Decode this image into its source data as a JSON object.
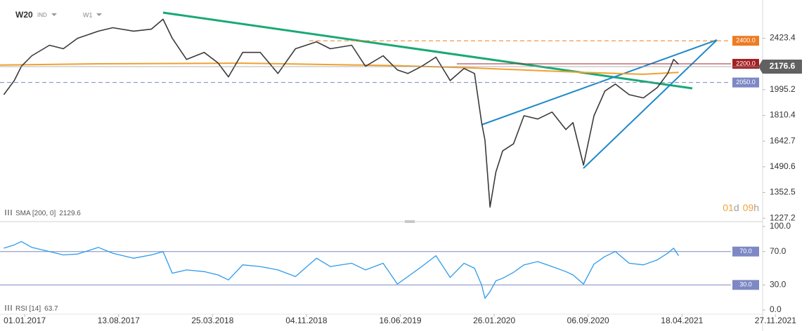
{
  "chart_data": [
    {
      "type": "line",
      "instrument_type": "IND",
      "interval": "W1",
      "log_scale": true,
      "xlim": [
        "2016-11-03",
        "2022-02-15"
      ],
      "ylim": [
        1215,
        2800
      ],
      "yticks": [
        2423.4,
        1995.2,
        1810.4,
        1642.7,
        1490.6,
        1352.5,
        1227.2
      ],
      "last_price": 2176.6,
      "levels": [
        {
          "value": 2400,
          "label": "2400.0",
          "color": "#ee7b22",
          "style": "dashed"
        },
        {
          "value": 2200,
          "label": "2200.0",
          "color": "#a31f24",
          "style": "solid"
        },
        {
          "value": 2050,
          "label": "2050.0",
          "color": "#7d88c4",
          "style": "dashed"
        }
      ],
      "timer": [
        {
          "text": "01",
          "color": "#f2a33a"
        },
        {
          "text": "d",
          "color": "#a0a0a0"
        },
        {
          "text": "09",
          "color": "#f2a33a"
        },
        {
          "text": "h",
          "color": "#a0a0a0"
        }
      ],
      "series": [
        {
          "name": "W20",
          "color": "#3a3a3a",
          "x": [
            "2016-11-12",
            "2016-12-07",
            "2016-12-24",
            "2017-01-18",
            "2017-03-01",
            "2017-04-03",
            "2017-05-07",
            "2017-06-26",
            "2017-07-30",
            "2017-09-18",
            "2017-10-30",
            "2017-11-27",
            "2017-12-19",
            "2018-01-22",
            "2018-03-05",
            "2018-04-07",
            "2018-05-02",
            "2018-06-05",
            "2018-07-17",
            "2018-08-28",
            "2018-10-09",
            "2018-11-28",
            "2018-12-31",
            "2019-02-20",
            "2019-03-25",
            "2019-05-06",
            "2019-06-09",
            "2019-07-04",
            "2019-08-06",
            "2019-09-09",
            "2019-10-13",
            "2019-11-15",
            "2019-12-10",
            "2019-12-27",
            "2020-01-04",
            "2020-01-16",
            "2020-01-30",
            "2020-02-15",
            "2020-03-12",
            "2020-04-06",
            "2020-05-09",
            "2020-06-12",
            "2020-07-15",
            "2020-08-01",
            "2020-08-26",
            "2020-09-20",
            "2020-10-16",
            "2020-11-10",
            "2020-12-13",
            "2021-01-16",
            "2021-02-18",
            "2021-03-15",
            "2021-03-29",
            "2021-04-10"
          ],
          "values": [
            1958,
            2065,
            2179,
            2268,
            2360,
            2329,
            2423,
            2489,
            2522,
            2489,
            2508,
            2604,
            2423,
            2237,
            2297,
            2208,
            2094,
            2297,
            2297,
            2121,
            2329,
            2391,
            2329,
            2360,
            2179,
            2268,
            2150,
            2121,
            2179,
            2256,
            2065,
            2162,
            2121,
            1762,
            1648,
            1280,
            1461,
            1583,
            1626,
            1808,
            1786,
            1833,
            1716,
            1762,
            1500,
            1808,
            1985,
            2038,
            1958,
            1934,
            2011,
            2121,
            2237,
            2196
          ]
        },
        {
          "name": "SMA [200, 0]",
          "color": "#f0a030",
          "legend_value": 2129.6,
          "x": [
            "2016-11-03",
            "2017-06-26",
            "2018-06-05",
            "2019-06-09",
            "2019-12-10",
            "2020-08-26",
            "2021-01-16",
            "2021-04-10"
          ],
          "values": [
            2190,
            2200,
            2205,
            2185,
            2165,
            2130,
            2115,
            2129.6
          ]
        }
      ]
    },
    {
      "type": "line",
      "name": "RSI [14]",
      "legend_value": 63.7,
      "color": "#2e9bea",
      "xlim": [
        "2016-11-03",
        "2022-02-15"
      ],
      "ylim": [
        0,
        100
      ],
      "yticks": [
        {
          "value": 100,
          "label": "100.0"
        },
        {
          "value": 70,
          "label": "70.0"
        },
        {
          "value": 30,
          "label": "30.0"
        },
        {
          "value": 0,
          "label": "0.0"
        }
      ],
      "levels": [
        {
          "value": 70,
          "label": "70.0",
          "color": "#7d88c4"
        },
        {
          "value": 30,
          "label": "30.0",
          "color": "#7d88c4"
        }
      ],
      "xticks": [
        {
          "value": "2017-01-01",
          "label": "01.01.2017"
        },
        {
          "value": "2017-08-13",
          "label": "13.08.2017"
        },
        {
          "value": "2018-03-25",
          "label": "25.03.2018"
        },
        {
          "value": "2018-11-04",
          "label": "04.11.2018"
        },
        {
          "value": "2019-06-16",
          "label": "16.06.2019"
        },
        {
          "value": "2020-01-26",
          "label": "26.01.2020"
        },
        {
          "value": "2020-09-06",
          "label": "06.09.2020"
        },
        {
          "value": "2021-04-18",
          "label": "18.04.2021"
        },
        {
          "value": "2021-11-27",
          "label": "27.11.2021"
        }
      ],
      "x": [
        "2016-11-12",
        "2016-12-07",
        "2016-12-24",
        "2017-01-18",
        "2017-03-01",
        "2017-04-03",
        "2017-05-07",
        "2017-06-26",
        "2017-07-30",
        "2017-09-18",
        "2017-10-30",
        "2017-11-27",
        "2017-12-19",
        "2018-01-22",
        "2018-03-05",
        "2018-04-07",
        "2018-05-02",
        "2018-06-05",
        "2018-07-17",
        "2018-08-28",
        "2018-10-09",
        "2018-11-28",
        "2018-12-31",
        "2019-02-20",
        "2019-03-25",
        "2019-05-06",
        "2019-06-09",
        "2019-07-04",
        "2019-08-06",
        "2019-09-09",
        "2019-10-13",
        "2019-11-15",
        "2019-12-10",
        "2019-12-27",
        "2020-01-04",
        "2020-01-16",
        "2020-01-30",
        "2020-02-15",
        "2020-03-12",
        "2020-04-06",
        "2020-05-09",
        "2020-06-12",
        "2020-07-15",
        "2020-08-01",
        "2020-08-26",
        "2020-09-20",
        "2020-10-16",
        "2020-11-10",
        "2020-12-13",
        "2021-01-16",
        "2021-02-18",
        "2021-03-15",
        "2021-03-29",
        "2021-04-10"
      ],
      "values": [
        74,
        78,
        82,
        75,
        70,
        66,
        67,
        75,
        68,
        62,
        66,
        70,
        44,
        48,
        46,
        42,
        36,
        54,
        52,
        48,
        40,
        62,
        52,
        56,
        48,
        56,
        31,
        40,
        52,
        65,
        39,
        56,
        50,
        30,
        14,
        22,
        35,
        38,
        45,
        54,
        58,
        52,
        46,
        42,
        31,
        55,
        64,
        70,
        56,
        54,
        60,
        68,
        74,
        65
      ]
    }
  ]
}
